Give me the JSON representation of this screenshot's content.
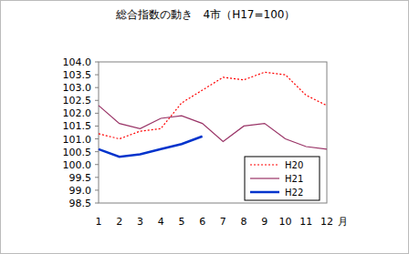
{
  "chart_data": {
    "type": "line",
    "title": "総合指数の動き　4市（H17=100）",
    "x_label": "月",
    "categories": [
      "1",
      "2",
      "3",
      "4",
      "5",
      "6",
      "7",
      "8",
      "9",
      "10",
      "11",
      "12"
    ],
    "series": [
      {
        "name": "H20",
        "color": "#ff0000",
        "line_style": "dotted",
        "values": [
          101.2,
          101.0,
          101.3,
          101.4,
          102.4,
          102.9,
          103.4,
          103.3,
          103.6,
          103.5,
          102.7,
          102.3
        ]
      },
      {
        "name": "H21",
        "color": "#993366",
        "line_style": "solid",
        "values": [
          102.3,
          101.6,
          101.4,
          101.8,
          101.9,
          101.6,
          100.9,
          101.5,
          101.6,
          101.0,
          100.7,
          100.6
        ]
      },
      {
        "name": "H22",
        "color": "#0033cc",
        "line_style": "thick",
        "values": [
          100.6,
          100.3,
          100.4,
          100.6,
          100.8,
          101.1,
          null,
          null,
          null,
          null,
          null,
          null
        ]
      }
    ],
    "ylim": [
      98.5,
      104
    ],
    "yticks": [
      98.5,
      {
        "value": 99,
        "label": "99.0"
      },
      99.5,
      {
        "value": 100,
        "label": "100.0"
      },
      100.5,
      {
        "value": 101,
        "label": "101.0"
      },
      101.5,
      {
        "value": 102,
        "label": "102.0"
      },
      102.5,
      {
        "value": 103,
        "label": "103.0"
      },
      103.5,
      {
        "value": 104,
        "label": "104.0"
      }
    ],
    "grid": false,
    "legend": "bottom-right"
  }
}
